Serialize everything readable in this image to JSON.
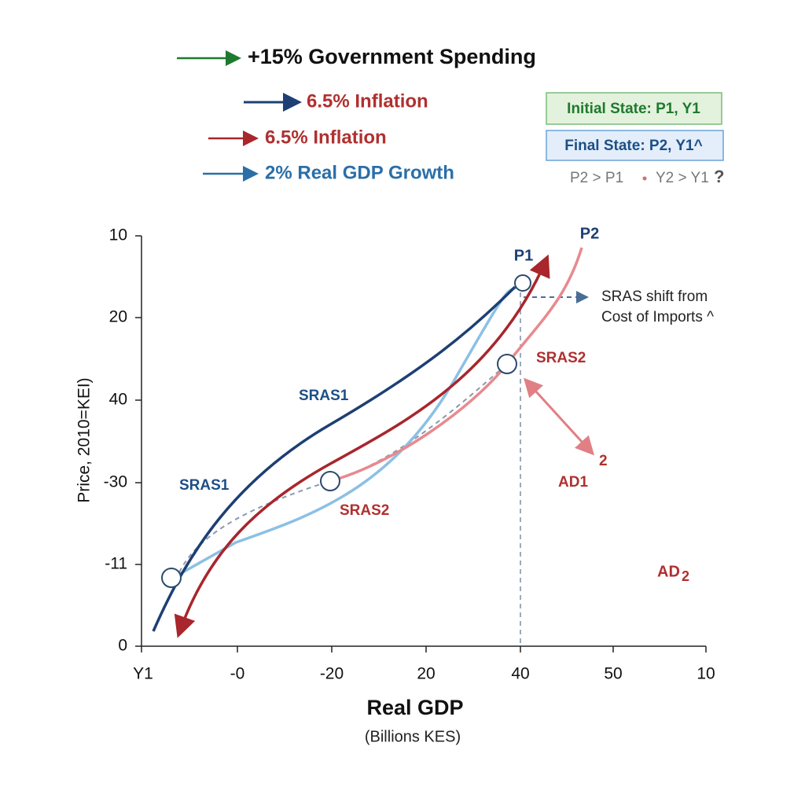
{
  "legend": [
    "+15% Government Spending",
    "6.5% Inflation",
    "6.5% Inflation",
    "2% Real GDP Growth"
  ],
  "states": {
    "initial": "Initial State: P1, Y1",
    "final": "Final State: P2, Y1^",
    "comparison": [
      "P2 > P1",
      "Y2 > Y1",
      "?"
    ]
  },
  "axes": {
    "y_label": "Price, 2010=KEI)",
    "x_label": "Real GDP",
    "x_sublabel": "(Billions KES)",
    "y_tick_labels": [
      "10",
      "20",
      "40",
      "-30",
      "-11",
      "0"
    ],
    "x_tick_labels": [
      "Y1",
      "-0",
      "-20",
      "20",
      "40",
      "50",
      "10"
    ]
  },
  "annotations": {
    "p1": "P1",
    "p2": "P2",
    "shift": [
      "SRAS shift from",
      "Cost of Imports ^"
    ],
    "sras1_upper": "SRAS1",
    "sras1_lower": "SRAS1",
    "sras2_upper": "SRAS2",
    "sras2_lower": "SRAS2",
    "two": "2",
    "ad1": "AD1",
    "ad2": [
      "AD",
      "2"
    ]
  }
}
